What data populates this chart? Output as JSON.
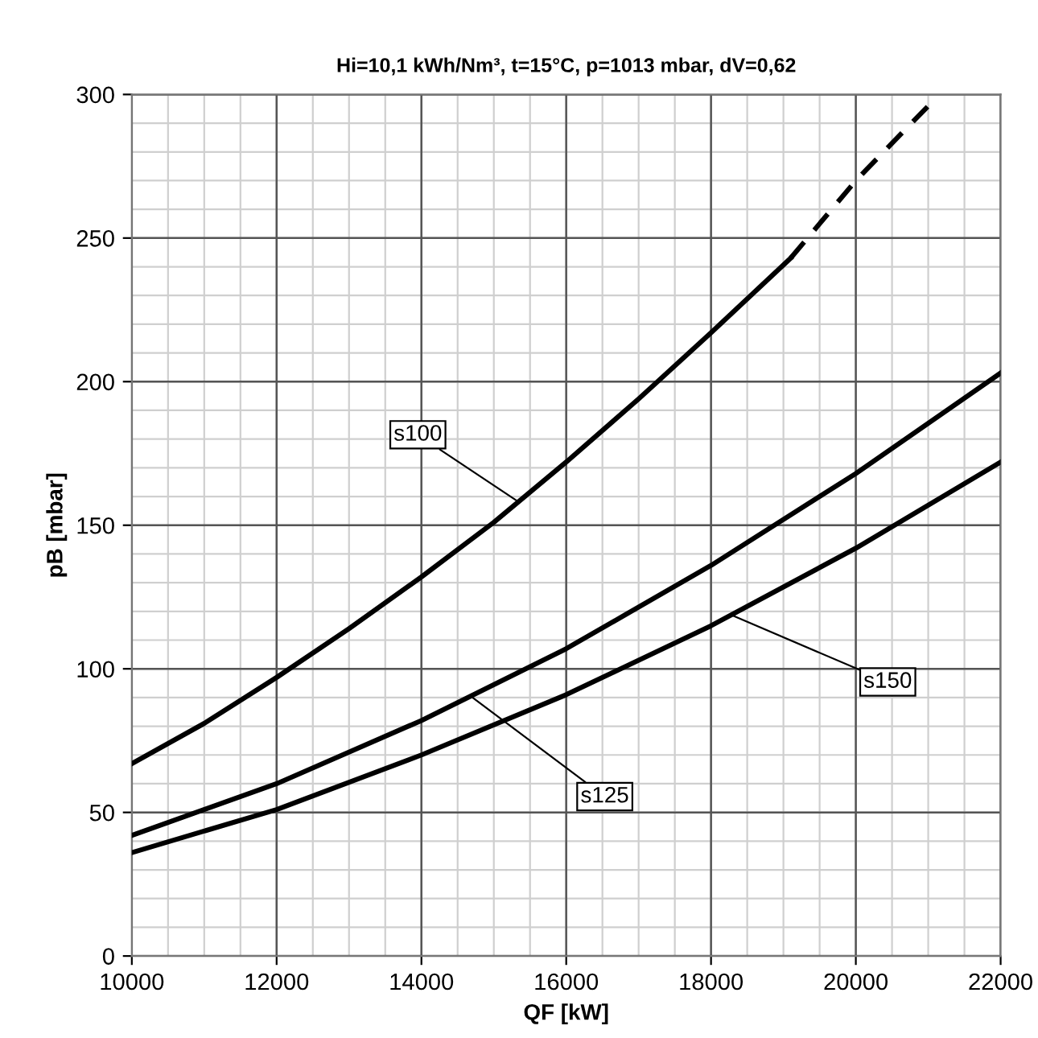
{
  "chart_data": {
    "type": "line",
    "title": "Hi=10,1 kWh/Nm³, t=15°C, p=1013 mbar, dV=0,62",
    "xlabel": "QF [kW]",
    "ylabel": "pB [mbar]",
    "series": [
      {
        "name": "s100",
        "color": "#000000",
        "line_style": "solid",
        "x": [
          10000,
          11000,
          12000,
          13000,
          14000,
          15000,
          16000,
          17000,
          18000,
          19100
        ],
        "values": [
          67,
          81,
          97,
          114,
          132,
          151,
          172,
          194,
          217,
          243
        ]
      },
      {
        "color": "#000000",
        "line_style": "dashed",
        "x": [
          19100,
          20000,
          21000
        ],
        "values": [
          243,
          270,
          296
        ]
      },
      {
        "name": "s125",
        "color": "#000000",
        "line_style": "solid",
        "x": [
          10000,
          12000,
          14000,
          16000,
          18000,
          20000,
          22000
        ],
        "values": [
          42,
          60,
          82,
          107,
          136,
          168,
          203
        ]
      },
      {
        "name": "s150",
        "color": "#000000",
        "line_style": "solid",
        "x": [
          10000,
          12000,
          14000,
          16000,
          18000,
          20000,
          22000
        ],
        "values": [
          36,
          51,
          70,
          91,
          115,
          142,
          172
        ]
      }
    ],
    "xlim": [
      10000,
      22000
    ],
    "xticks": [
      10000,
      12000,
      14000,
      16000,
      18000,
      20000,
      22000
    ],
    "ylim": [
      0,
      300
    ],
    "yticks": [
      0,
      50,
      100,
      150,
      200,
      250,
      300
    ],
    "grid": true,
    "legend": false,
    "marker": "none"
  }
}
